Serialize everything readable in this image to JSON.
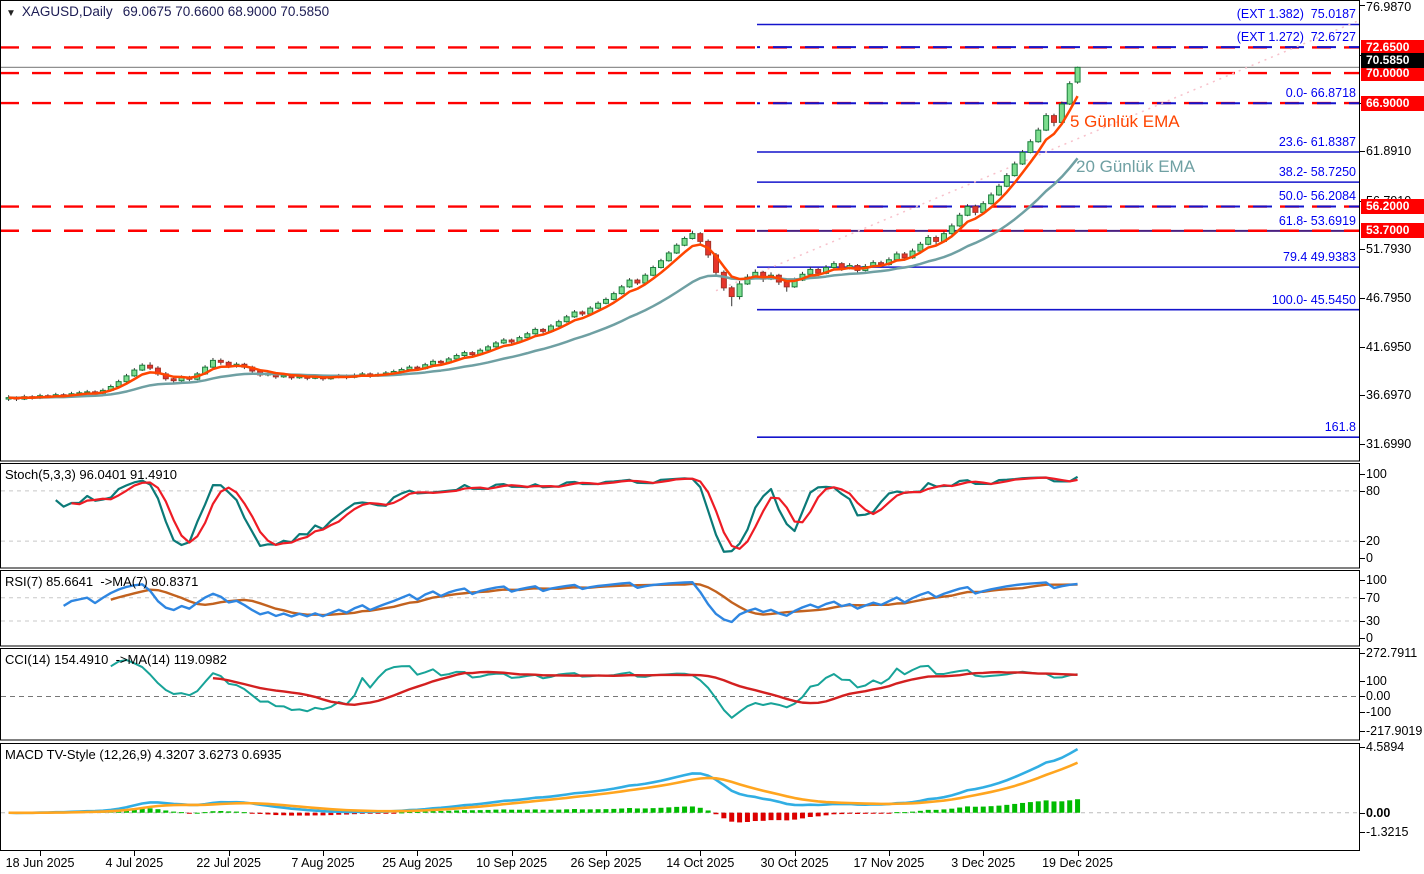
{
  "header": {
    "dropdown_icon": "▼",
    "symbol": "XAGUSD,Daily",
    "ohlc": "69.0675 70.6600 68.9000 70.5850"
  },
  "main_chart": {
    "ema5_label": "5 Günlük EMA",
    "ema20_label": "20 Günlük EMA",
    "current_price_text": "70.5850"
  },
  "panels": {
    "stoch": {
      "label": "Stoch(5,3,3) 96.0401 91.4910"
    },
    "rsi": {
      "label": "RSI(7) 85.6641  ->MA(7) 80.8371"
    },
    "cci": {
      "label": "CCI(14) 154.4910  ->MA(14) 119.0982"
    },
    "macd": {
      "label": "MACD TV-Style (12,26,9) 4.3207 3.6273 0.6935"
    }
  },
  "chart_data": {
    "type": "candlestick",
    "symbol": "XAGUSD",
    "timeframe": "Daily",
    "last_ohlc": {
      "open": 69.0675,
      "high": 70.66,
      "low": 68.9,
      "close": 70.585
    },
    "x_tick_labels": [
      "18 Jun 2025",
      "4 Jul 2025",
      "22 Jul 2025",
      "7 Aug 2025",
      "25 Aug 2025",
      "10 Sep 2025",
      "26 Sep 2025",
      "14 Oct 2025",
      "30 Oct 2025",
      "17 Nov 2025",
      "3 Dec 2025",
      "19 Dec 2025"
    ],
    "x_tick_indices": [
      4,
      16,
      28,
      40,
      52,
      64,
      76,
      88,
      100,
      112,
      124,
      136
    ],
    "price_axis": {
      "min": 29.9,
      "max": 77.55,
      "labels": [
        {
          "v": 76.987,
          "t": "76.9870"
        },
        {
          "v": 71.887,
          "t": "71.8870"
        },
        {
          "v": 66.889,
          "t": "66.8890"
        },
        {
          "v": 61.891,
          "t": "61.8910"
        },
        {
          "v": 56.791,
          "t": "56.7910"
        },
        {
          "v": 51.793,
          "t": "51.7930"
        },
        {
          "v": 46.795,
          "t": "46.7950"
        },
        {
          "v": 41.695,
          "t": "41.6950"
        },
        {
          "v": 36.697,
          "t": "36.6970"
        },
        {
          "v": 31.699,
          "t": "31.6990"
        }
      ]
    },
    "fib_levels": [
      {
        "label": "(EXT 1.382)  75.0187",
        "price": 75.0187,
        "style": "solid"
      },
      {
        "label": "(EXT 1.272)  72.6727",
        "price": 72.6727,
        "style": "dash"
      },
      {
        "label": "0.0- 66.8718",
        "price": 66.8718,
        "style": "dash"
      },
      {
        "label": "23.6- 61.8387",
        "price": 61.8387,
        "style": "solid"
      },
      {
        "label": "38.2- 58.7250",
        "price": 58.725,
        "style": "solid"
      },
      {
        "label": "50.0- 56.2084",
        "price": 56.2084,
        "style": "dash"
      },
      {
        "label": "61.8- 53.6919",
        "price": 53.6919,
        "style": "purple"
      },
      {
        "label": "79.4 49.9383",
        "price": 49.9383,
        "style": "solid"
      },
      {
        "label": "100.0- 45.5450",
        "price": 45.545,
        "style": "solid"
      },
      {
        "label": "161.8",
        "price": 32.365,
        "style": "solid"
      }
    ],
    "red_levels": [
      {
        "price": 72.65,
        "text": "72.6500"
      },
      {
        "price": 70.0,
        "text": "70.0000"
      },
      {
        "price": 66.9,
        "text": "66.9000"
      },
      {
        "price": 56.2,
        "text": "56.2000"
      },
      {
        "price": 53.7,
        "text": "53.7000"
      }
    ],
    "current_price": 70.585,
    "trendline": {
      "from_bar": 90,
      "from_price": 47.5,
      "to_bar": 172,
      "to_price": 75.5
    },
    "overlays": {
      "ema_fast": 5,
      "ema_slow": 20
    },
    "indicator_panels": {
      "stoch": {
        "params": [
          5,
          3,
          3
        ],
        "range": {
          "min": -12,
          "max": 112
        },
        "grid": [
          80,
          20
        ],
        "axis": [
          {
            "v": 100,
            "t": "100"
          },
          {
            "v": 80,
            "t": "80"
          },
          {
            "v": 20,
            "t": "20"
          },
          {
            "v": 0,
            "t": "0"
          }
        ]
      },
      "rsi": {
        "params": [
          7
        ],
        "range": {
          "min": -13,
          "max": 116
        },
        "grid": [
          70,
          30
        ],
        "axis": [
          {
            "v": 100,
            "t": "100"
          },
          {
            "v": 70,
            "t": "70"
          },
          {
            "v": 30,
            "t": "30"
          },
          {
            "v": 0,
            "t": "0"
          }
        ]
      },
      "cci": {
        "params": [
          14
        ],
        "range": {
          "min": -275,
          "max": 300
        },
        "grid": [
          0
        ],
        "axis": [
          {
            "v": 272.7911,
            "t": "272.7911"
          },
          {
            "v": 100,
            "t": "100"
          },
          {
            "v": 0,
            "t": "0.00"
          },
          {
            "v": -100,
            "t": "-100"
          },
          {
            "v": -217.9019,
            "t": "-217.9019"
          }
        ]
      },
      "macd": {
        "params": [
          12,
          26,
          9
        ],
        "range": {
          "min": -2.6,
          "max": 4.8
        },
        "grid": [
          0
        ],
        "axis": [
          {
            "v": 4.5894,
            "t": "4.5894"
          },
          {
            "v": 0,
            "t": "0.00",
            "bold": true
          },
          {
            "v": -1.3215,
            "t": "-1.3215"
          }
        ]
      }
    },
    "colors": {
      "up_fill": "#7cdd8e",
      "up_stroke": "#1b7e3c",
      "down_fill": "#e6352b",
      "down_stroke": "#a93226",
      "wick": "#333333",
      "ema5": "#ff4500",
      "ema20": "#6fa0a3",
      "fib_line": "#1414cc",
      "fib_label": "#0000f0",
      "fib_purple": "#4b2080",
      "red_level": "#ff0000",
      "current_line": "#909090",
      "stoch_k": "#0b7a78",
      "stoch_d": "#ee1c25",
      "rsi_line": "#2e86e1",
      "rsi_ma": "#c2621f",
      "cci_line": "#17a398",
      "cci_ma": "#d32020",
      "macd_line": "#31aee3",
      "macd_signal": "#ffa51f",
      "hist_up": "#00bb00",
      "hist_down": "#dd0000",
      "grid_dash": "#c8c8c8",
      "trendline": "#f7c0ca"
    },
    "candles": [
      [
        36.3,
        36.7,
        36.1,
        36.45
      ],
      [
        36.45,
        36.6,
        36.1,
        36.3
      ],
      [
        36.3,
        36.75,
        36.2,
        36.55
      ],
      [
        36.55,
        36.7,
        36.25,
        36.4
      ],
      [
        36.4,
        36.85,
        36.3,
        36.65
      ],
      [
        36.65,
        36.8,
        36.4,
        36.55
      ],
      [
        36.55,
        36.95,
        36.45,
        36.75
      ],
      [
        36.75,
        36.9,
        36.45,
        36.6
      ],
      [
        36.6,
        37.05,
        36.5,
        36.85
      ],
      [
        36.85,
        37.15,
        36.7,
        36.95
      ],
      [
        36.95,
        37.25,
        36.85,
        37.05
      ],
      [
        37.05,
        37.2,
        36.75,
        36.9
      ],
      [
        36.9,
        37.4,
        36.8,
        37.2
      ],
      [
        37.2,
        37.8,
        37.1,
        37.6
      ],
      [
        37.6,
        38.3,
        37.5,
        38.1
      ],
      [
        38.1,
        38.9,
        38.0,
        38.7
      ],
      [
        38.7,
        39.5,
        38.6,
        39.3
      ],
      [
        39.3,
        40.0,
        39.2,
        39.8
      ],
      [
        39.8,
        40.1,
        39.3,
        39.5
      ],
      [
        39.5,
        39.7,
        38.7,
        38.9
      ],
      [
        38.9,
        39.1,
        38.2,
        38.4
      ],
      [
        38.4,
        38.7,
        38.0,
        38.2
      ],
      [
        38.2,
        38.75,
        38.1,
        38.55
      ],
      [
        38.55,
        38.7,
        38.15,
        38.35
      ],
      [
        38.35,
        39.1,
        38.25,
        38.9
      ],
      [
        38.9,
        39.8,
        38.8,
        39.6
      ],
      [
        39.6,
        40.55,
        39.5,
        40.3
      ],
      [
        40.3,
        40.5,
        39.85,
        40.1
      ],
      [
        40.1,
        40.25,
        39.5,
        39.7
      ],
      [
        39.7,
        40.1,
        39.55,
        39.9
      ],
      [
        39.9,
        40.05,
        39.4,
        39.6
      ],
      [
        39.6,
        39.75,
        39.0,
        39.2
      ],
      [
        39.2,
        39.4,
        38.6,
        38.8
      ],
      [
        38.8,
        39.15,
        38.65,
        38.95
      ],
      [
        38.95,
        39.05,
        38.4,
        38.6
      ],
      [
        38.6,
        38.95,
        38.5,
        38.75
      ],
      [
        38.75,
        38.9,
        38.3,
        38.5
      ],
      [
        38.5,
        38.85,
        38.4,
        38.65
      ],
      [
        38.65,
        38.8,
        38.25,
        38.45
      ],
      [
        38.45,
        38.8,
        38.35,
        38.6
      ],
      [
        38.6,
        38.75,
        38.2,
        38.4
      ],
      [
        38.4,
        38.75,
        38.3,
        38.55
      ],
      [
        38.55,
        38.9,
        38.45,
        38.7
      ],
      [
        38.7,
        38.85,
        38.35,
        38.55
      ],
      [
        38.55,
        38.95,
        38.45,
        38.75
      ],
      [
        38.75,
        39.1,
        38.65,
        38.9
      ],
      [
        38.9,
        39.05,
        38.5,
        38.7
      ],
      [
        38.7,
        39.05,
        38.6,
        38.85
      ],
      [
        38.85,
        39.2,
        38.75,
        39.0
      ],
      [
        39.0,
        39.35,
        38.9,
        39.15
      ],
      [
        39.15,
        39.55,
        39.05,
        39.35
      ],
      [
        39.35,
        39.8,
        39.25,
        39.6
      ],
      [
        39.6,
        39.75,
        39.25,
        39.45
      ],
      [
        39.45,
        40.05,
        39.35,
        39.85
      ],
      [
        39.85,
        40.4,
        39.75,
        40.2
      ],
      [
        40.2,
        40.35,
        39.85,
        40.05
      ],
      [
        40.05,
        40.65,
        39.95,
        40.45
      ],
      [
        40.45,
        41.0,
        40.35,
        40.8
      ],
      [
        40.8,
        41.3,
        40.7,
        41.1
      ],
      [
        41.1,
        41.25,
        40.7,
        40.9
      ],
      [
        40.9,
        41.55,
        40.8,
        41.35
      ],
      [
        41.35,
        41.9,
        41.25,
        41.7
      ],
      [
        41.7,
        42.3,
        41.6,
        42.1
      ],
      [
        42.1,
        42.6,
        42.0,
        42.4
      ],
      [
        42.4,
        42.55,
        42.0,
        42.2
      ],
      [
        42.2,
        42.85,
        42.1,
        42.65
      ],
      [
        42.65,
        43.25,
        42.55,
        43.05
      ],
      [
        43.05,
        43.7,
        42.95,
        43.5
      ],
      [
        43.5,
        43.65,
        43.1,
        43.3
      ],
      [
        43.3,
        44.05,
        43.2,
        43.85
      ],
      [
        43.85,
        44.5,
        43.75,
        44.3
      ],
      [
        44.3,
        45.0,
        44.2,
        44.8
      ],
      [
        44.8,
        45.5,
        44.7,
        45.3
      ],
      [
        45.3,
        45.45,
        44.9,
        45.1
      ],
      [
        45.1,
        45.9,
        45.0,
        45.7
      ],
      [
        45.7,
        46.4,
        45.6,
        46.2
      ],
      [
        46.2,
        46.8,
        46.1,
        46.6
      ],
      [
        46.6,
        47.4,
        46.5,
        47.2
      ],
      [
        47.2,
        48.1,
        47.1,
        47.9
      ],
      [
        47.9,
        48.8,
        47.8,
        48.6
      ],
      [
        48.6,
        48.75,
        48.1,
        48.3
      ],
      [
        48.3,
        49.3,
        48.2,
        49.1
      ],
      [
        49.1,
        50.1,
        49.0,
        49.9
      ],
      [
        49.9,
        50.8,
        49.8,
        50.6
      ],
      [
        50.6,
        51.6,
        50.5,
        51.4
      ],
      [
        51.4,
        52.4,
        51.3,
        52.2
      ],
      [
        52.2,
        53.1,
        52.1,
        52.9
      ],
      [
        52.9,
        53.7,
        52.8,
        53.4
      ],
      [
        53.4,
        53.55,
        52.3,
        52.6
      ],
      [
        52.6,
        52.8,
        50.9,
        51.2
      ],
      [
        51.2,
        51.4,
        49.1,
        49.4
      ],
      [
        49.4,
        49.6,
        47.5,
        47.8
      ],
      [
        47.8,
        48.0,
        45.9,
        46.9
      ],
      [
        46.9,
        48.5,
        46.6,
        48.2
      ],
      [
        48.2,
        49.2,
        48.1,
        48.9
      ],
      [
        48.9,
        49.7,
        48.8,
        49.4
      ],
      [
        49.4,
        49.55,
        48.4,
        48.7
      ],
      [
        48.7,
        49.4,
        48.6,
        49.1
      ],
      [
        49.1,
        49.25,
        48.1,
        48.4
      ],
      [
        48.4,
        48.6,
        47.4,
        47.9
      ],
      [
        47.9,
        48.85,
        47.8,
        48.6
      ],
      [
        48.6,
        49.45,
        48.5,
        49.2
      ],
      [
        49.2,
        49.95,
        49.1,
        49.7
      ],
      [
        49.7,
        49.85,
        49.0,
        49.3
      ],
      [
        49.3,
        50.15,
        49.2,
        49.9
      ],
      [
        49.9,
        50.55,
        49.8,
        50.3
      ],
      [
        50.3,
        50.45,
        49.55,
        49.8
      ],
      [
        49.8,
        50.35,
        49.7,
        50.1
      ],
      [
        50.1,
        50.25,
        49.35,
        49.6
      ],
      [
        49.6,
        50.25,
        49.5,
        50.0
      ],
      [
        50.0,
        50.65,
        49.9,
        50.4
      ],
      [
        50.4,
        50.6,
        49.9,
        50.2
      ],
      [
        50.2,
        50.95,
        50.1,
        50.7
      ],
      [
        50.7,
        51.55,
        50.6,
        51.3
      ],
      [
        51.3,
        51.5,
        50.6,
        50.9
      ],
      [
        50.9,
        51.85,
        50.8,
        51.6
      ],
      [
        51.6,
        52.55,
        51.5,
        52.3
      ],
      [
        52.3,
        53.25,
        52.2,
        53.0
      ],
      [
        53.0,
        53.2,
        52.3,
        52.6
      ],
      [
        52.6,
        53.65,
        52.5,
        53.4
      ],
      [
        53.4,
        54.45,
        53.3,
        54.2
      ],
      [
        54.2,
        55.55,
        54.1,
        55.3
      ],
      [
        55.3,
        56.45,
        55.2,
        56.2
      ],
      [
        56.2,
        56.4,
        55.3,
        55.6
      ],
      [
        55.6,
        56.75,
        55.5,
        56.5
      ],
      [
        56.5,
        57.65,
        56.4,
        57.4
      ],
      [
        57.4,
        58.55,
        57.3,
        58.3
      ],
      [
        58.3,
        59.65,
        58.2,
        59.4
      ],
      [
        59.4,
        60.85,
        59.3,
        60.6
      ],
      [
        60.6,
        62.05,
        60.5,
        61.8
      ],
      [
        61.8,
        63.15,
        61.7,
        62.9
      ],
      [
        62.9,
        64.35,
        62.8,
        64.1
      ],
      [
        64.1,
        65.85,
        64.0,
        65.6
      ],
      [
        65.6,
        65.8,
        64.5,
        64.9
      ],
      [
        64.9,
        67.05,
        64.8,
        66.8
      ],
      [
        66.8,
        69.15,
        66.7,
        68.9
      ],
      [
        69.0675,
        70.66,
        68.9,
        70.585
      ]
    ]
  }
}
